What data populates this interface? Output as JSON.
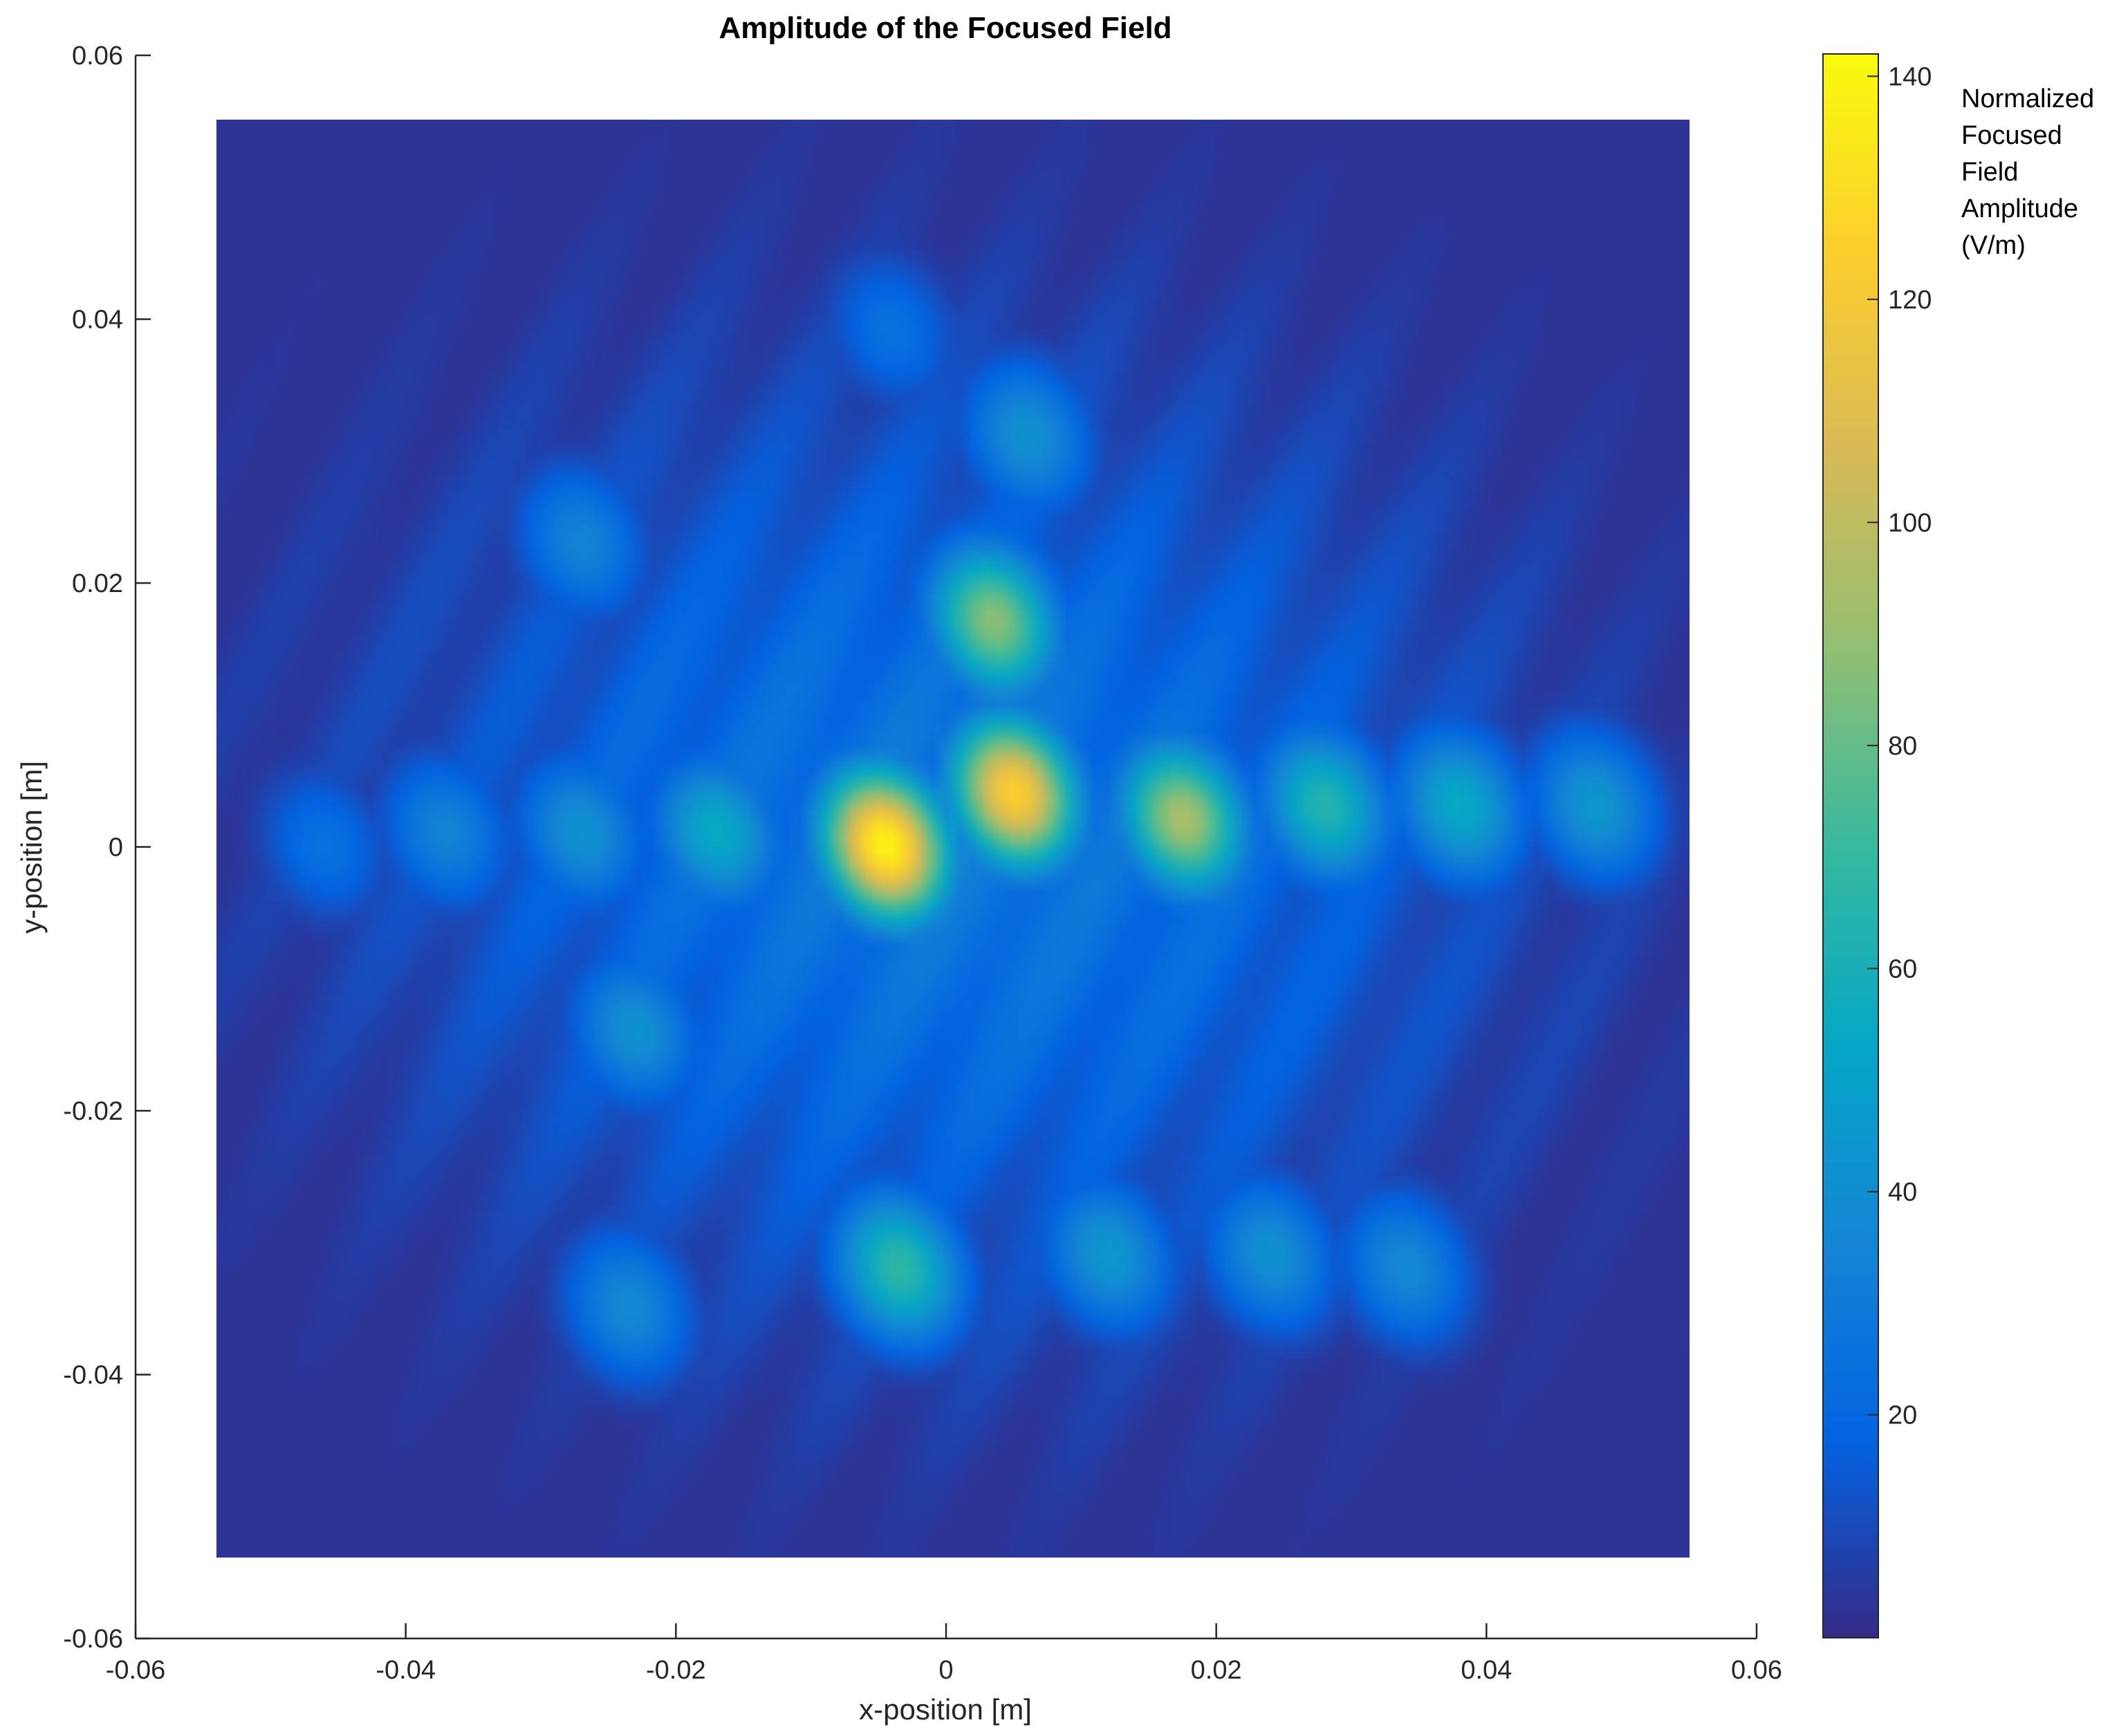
{
  "chart_data": {
    "type": "heatmap",
    "title": "Amplitude of the Focused Field",
    "xlabel": "x-position [m]",
    "ylabel": "y-position [m]",
    "xlim": [
      -0.06,
      0.06
    ],
    "ylim": [
      -0.06,
      0.06
    ],
    "data_extent": {
      "x": [
        -0.054,
        0.055
      ],
      "y": [
        -0.054,
        0.055
      ]
    },
    "x_ticks": [
      "-0.06",
      "-0.04",
      "-0.02",
      "0",
      "0.02",
      "0.04",
      "0.06"
    ],
    "y_ticks": [
      "0.06",
      "0.04",
      "0.02",
      "0",
      "-0.02",
      "-0.04",
      "-0.06"
    ],
    "x_tick_values": [
      -0.06,
      -0.04,
      -0.02,
      0,
      0.02,
      0.04,
      0.06
    ],
    "y_tick_values": [
      0.06,
      0.04,
      0.02,
      0,
      -0.02,
      -0.04,
      -0.06
    ],
    "colormap": "parula",
    "clim": [
      0,
      142
    ],
    "colorbar": {
      "ticks": [
        "140",
        "120",
        "100",
        "80",
        "60",
        "40",
        "20"
      ],
      "tick_values": [
        140,
        120,
        100,
        80,
        60,
        40,
        20
      ],
      "label_lines": [
        "Normalized",
        "Focused",
        "Field",
        "Amplitude",
        "(V/m)"
      ]
    },
    "peaks": [
      {
        "x": -0.0045,
        "y": 0.0,
        "value": 140
      },
      {
        "x": 0.005,
        "y": 0.004,
        "value": 125
      },
      {
        "x": 0.0175,
        "y": 0.002,
        "value": 95
      },
      {
        "x": 0.0035,
        "y": 0.017,
        "value": 88
      },
      {
        "x": -0.0035,
        "y": -0.032,
        "value": 68
      },
      {
        "x": 0.028,
        "y": 0.003,
        "value": 65
      },
      {
        "x": 0.038,
        "y": 0.003,
        "value": 55
      },
      {
        "x": -0.017,
        "y": 0.001,
        "value": 55
      },
      {
        "x": 0.048,
        "y": 0.003,
        "value": 45
      },
      {
        "x": -0.027,
        "y": 0.001,
        "value": 42
      },
      {
        "x": -0.037,
        "y": 0.001,
        "value": 35
      },
      {
        "x": -0.046,
        "y": 0.0,
        "value": 25
      },
      {
        "x": -0.0235,
        "y": -0.035,
        "value": 38
      },
      {
        "x": -0.023,
        "y": -0.014,
        "value": 42
      },
      {
        "x": 0.006,
        "y": 0.031,
        "value": 42
      },
      {
        "x": -0.027,
        "y": 0.023,
        "value": 35
      },
      {
        "x": 0.012,
        "y": -0.031,
        "value": 45
      },
      {
        "x": 0.024,
        "y": -0.031,
        "value": 42
      },
      {
        "x": 0.034,
        "y": -0.032,
        "value": 38
      },
      {
        "x": -0.004,
        "y": 0.039,
        "value": 25
      }
    ]
  },
  "colors": {
    "colormap_stops": [
      "#352a87",
      "#0363e1",
      "#1485d4",
      "#06a7c6",
      "#38b99e",
      "#92bf73",
      "#d9ba56",
      "#fcce2e",
      "#f9fb0e"
    ],
    "background": "#ffffff",
    "axis": "#262626"
  }
}
